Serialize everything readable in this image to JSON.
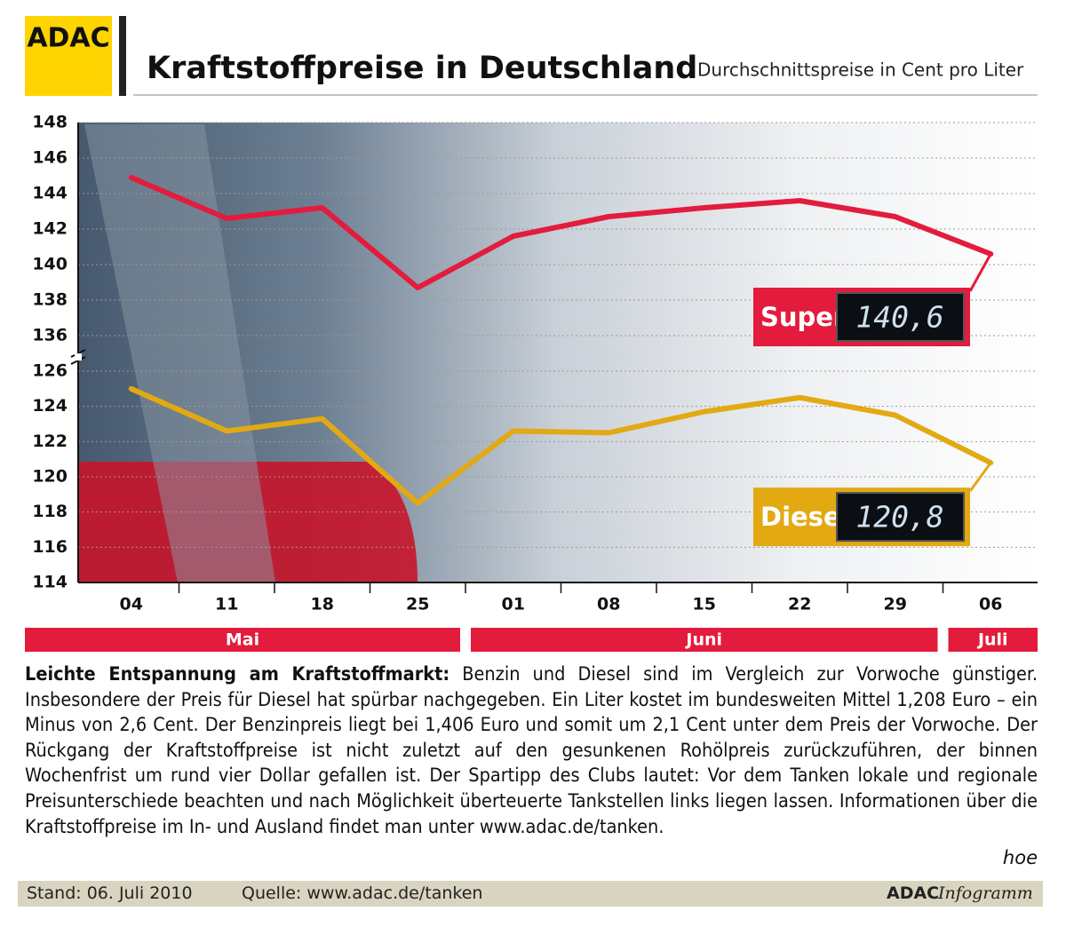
{
  "logo": "ADAC",
  "chart_data": {
    "type": "line",
    "title": "Kraftstoffpreise in Deutschland",
    "subtitle": "Durchschnittspreise in Cent pro Liter",
    "categories": [
      "04",
      "11",
      "18",
      "25",
      "01",
      "08",
      "15",
      "22",
      "29",
      "06"
    ],
    "months": [
      "Mai",
      "Juni",
      "Juli"
    ],
    "series": [
      {
        "name": "Super",
        "color": "#e31c3d",
        "values": [
          144.9,
          142.6,
          143.2,
          138.7,
          141.6,
          142.7,
          143.2,
          143.6,
          142.7,
          140.6
        ],
        "value_labels": [
          null,
          null,
          null,
          null,
          null,
          null,
          null,
          null,
          null,
          "140,6"
        ]
      },
      {
        "name": "Diesel",
        "color": "#e2a912",
        "axis": "y2",
        "values": [
          125.0,
          122.6,
          123.3,
          118.5,
          122.6,
          122.5,
          123.7,
          124.5,
          123.5,
          120.8
        ],
        "value_labels": [
          null,
          null,
          null,
          null,
          null,
          null,
          null,
          null,
          null,
          "120,8"
        ]
      }
    ],
    "ylim": [
      135,
      148
    ],
    "yticks": [
      136,
      138,
      140,
      142,
      144,
      146,
      148
    ],
    "y2lim": [
      114,
      126
    ],
    "y2ticks": [
      114,
      116,
      118,
      120,
      122,
      124,
      126
    ],
    "grid": true
  },
  "article": {
    "lead": "Leichte Entspannung am Kraftstoffmarkt:",
    "body": " Benzin und Diesel sind im Vergleich zur Vorwoche günstiger. Insbesondere der Preis für Diesel hat spürbar nachgegeben. Ein Liter kostet im bundesweiten Mittel 1,208 Euro – ein Minus von 2,6 Cent. Der Benzinpreis liegt bei 1,406 Euro und somit um 2,1 Cent unter dem Preis der Vorwoche. Der Rückgang der Kraftstoffpreise ist nicht zuletzt auf den gesunkenen Rohölpreis zurückzuführen, der binnen Wochenfrist um rund vier Dollar gefallen ist. Der Spartipp des Clubs lautet: Vor dem Tanken lokale und regionale Preisunterschiede beachten und nach Möglichkeit überteuerte Tankstellen links liegen lassen. Informationen über die Kraftstoffpreise im In- und Ausland findet man unter www.adac.de/tanken.",
    "author": "hoe"
  },
  "footer": {
    "stand": "Stand:  06. Juli 2010",
    "source": "Quelle: www.adac.de/tanken",
    "brand": "ADAC",
    "brand_suffix": "Infogramm"
  }
}
